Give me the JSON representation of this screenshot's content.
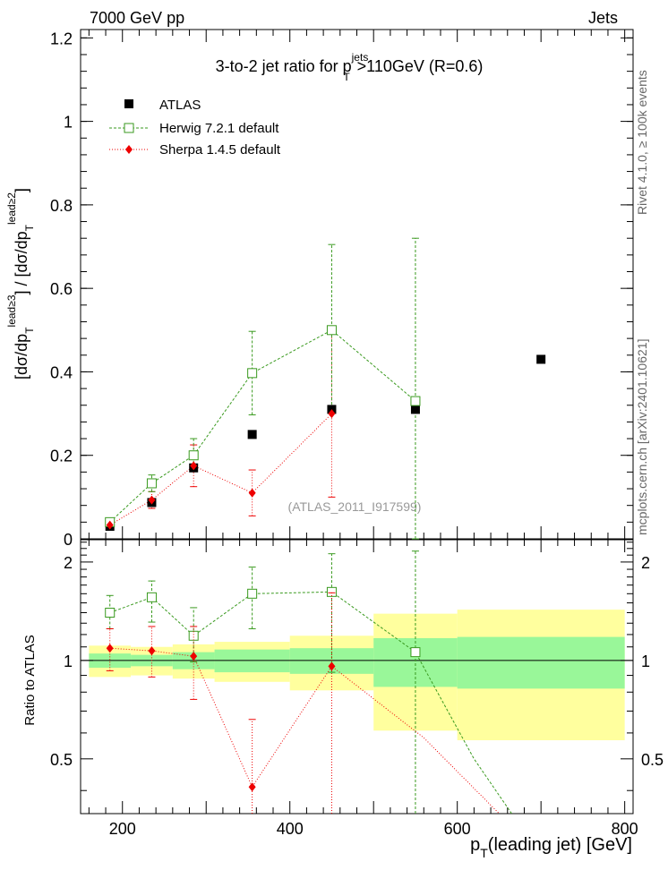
{
  "header": {
    "left": "7000 GeV pp",
    "right": "Jets"
  },
  "side_text": {
    "rivet": "Rivet 4.1.0, ≥ 100k events",
    "mcplots": "mcplots.cern.ch [arXiv:2401.10621]"
  },
  "watermark": "(ATLAS_2011_I917599)",
  "chart_data": [
    {
      "type": "scatter",
      "panel": "main",
      "title": "3-to-2 jet ratio for p_T^jets > 110 GeV (R=0.6)",
      "title_parts": {
        "p": "3-to-2 jet ratio for p",
        "sup": "jets",
        "sub": "T",
        "rest": ">110GeV (R=0.6)"
      },
      "ylabel": "[dσ/dp_T^lead≥3] / [dσ/dp_T^lead≥2]",
      "xlim": [
        150,
        810
      ],
      "ylim": [
        0,
        1.22
      ],
      "yticks": [
        0,
        0.2,
        0.4,
        0.6,
        0.8,
        1,
        1.2
      ],
      "ytick_labels": [
        "0",
        "0.2",
        "0.4",
        "0.6",
        "0.8",
        "1",
        "1.2"
      ],
      "legend_position": "top-left",
      "series": [
        {
          "name": "ATLAS",
          "marker": "square-filled",
          "color": "#000000",
          "x": [
            185,
            235,
            285,
            355,
            450,
            550,
            700
          ],
          "y": [
            0.03,
            0.087,
            0.17,
            0.25,
            0.31,
            0.31,
            0.43
          ]
        },
        {
          "name": "Herwig 7.2.1 default",
          "marker": "square-open",
          "color": "#3a9a1f",
          "x": [
            185,
            235,
            285,
            355,
            450,
            550
          ],
          "y": [
            0.04,
            0.133,
            0.2,
            0.397,
            0.5,
            0.33
          ],
          "err_lo": [
            0.005,
            0.02,
            0.03,
            0.1,
            0.2,
            0.33
          ],
          "err_hi": [
            0.005,
            0.02,
            0.04,
            0.1,
            0.205,
            0.39
          ]
        },
        {
          "name": "Sherpa 1.4.5 default",
          "marker": "diamond",
          "color": "#ee0000",
          "x": [
            185,
            235,
            285,
            355,
            450
          ],
          "y": [
            0.033,
            0.093,
            0.175,
            0.11,
            0.3
          ],
          "err_lo": [
            0.008,
            0.02,
            0.05,
            0.055,
            0.2
          ],
          "err_hi": [
            0.008,
            0.02,
            0.05,
            0.055,
            0.2
          ]
        }
      ]
    },
    {
      "type": "scatter",
      "panel": "ratio",
      "ylabel": "Ratio to ATLAS",
      "xlabel": "p_T(leading jet) [GeV]",
      "xlabel_parts": {
        "p": "p",
        "sub": "T",
        "rest": "(leading jet) [GeV]"
      },
      "xlim": [
        150,
        810
      ],
      "ylim": [
        0.34,
        2.34
      ],
      "xticks": [
        200,
        400,
        600,
        800
      ],
      "xtick_labels": [
        "200",
        "400",
        "600",
        "800"
      ],
      "yticks": [
        0.5,
        1,
        2
      ],
      "ytick_labels": [
        "0.5",
        "1",
        "2"
      ],
      "bands": {
        "bins": [
          [
            160,
            210
          ],
          [
            210,
            260
          ],
          [
            260,
            310
          ],
          [
            310,
            400
          ],
          [
            400,
            500
          ],
          [
            500,
            600
          ],
          [
            600,
            800
          ]
        ],
        "inner": [
          [
            0.95,
            1.05
          ],
          [
            0.96,
            1.04
          ],
          [
            0.94,
            1.06
          ],
          [
            0.92,
            1.08
          ],
          [
            0.91,
            1.09
          ],
          [
            0.83,
            1.17
          ],
          [
            0.82,
            1.18
          ]
        ],
        "outer": [
          [
            0.89,
            1.11
          ],
          [
            0.9,
            1.1
          ],
          [
            0.88,
            1.12
          ],
          [
            0.86,
            1.14
          ],
          [
            0.81,
            1.19
          ],
          [
            0.61,
            1.39
          ],
          [
            0.57,
            1.43
          ]
        ],
        "inner_color": "#99f799",
        "outer_color": "#ffff9e"
      },
      "series": [
        {
          "name": "Herwig 7.2.1 default",
          "color": "#3a9a1f",
          "x": [
            185,
            235,
            285,
            355,
            450,
            550
          ],
          "y": [
            1.4,
            1.56,
            1.19,
            1.6,
            1.62,
            1.06
          ],
          "err_lo": [
            0.15,
            0.25,
            0.2,
            0.35,
            0.7,
            1.0
          ],
          "err_hi": [
            0.18,
            0.19,
            0.26,
            0.33,
            0.5,
            1.1
          ],
          "tail": [
            [
              620,
              0.5
            ],
            [
              665,
              0.34
            ]
          ]
        },
        {
          "name": "Sherpa 1.4.5 default",
          "color": "#ee0000",
          "x": [
            185,
            235,
            285,
            355,
            450
          ],
          "y": [
            1.09,
            1.07,
            1.03,
            0.41,
            0.96
          ],
          "err_lo": [
            0.16,
            0.18,
            0.27,
            0.3,
            0.65
          ],
          "err_hi": [
            0.16,
            0.2,
            0.24,
            0.25,
            0.65
          ],
          "tail": [
            [
              560,
              0.58
            ],
            [
              650,
              0.34
            ]
          ]
        }
      ]
    }
  ]
}
